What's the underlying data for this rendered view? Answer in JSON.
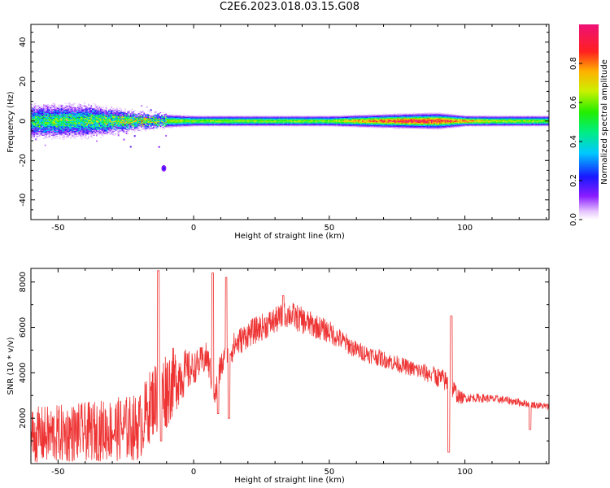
{
  "title": "C2E6.2023.018.03.15.G08",
  "colors": {
    "snr_line": "#ee3333",
    "axis": "#000000"
  },
  "chart_data": [
    {
      "type": "heatmap",
      "title": "C2E6.2023.018.03.15.G08",
      "xlabel": "Height of straight line (km)",
      "ylabel": "Frequency (Hz)",
      "xlim": [
        -60,
        131
      ],
      "ylim": [
        -50,
        49
      ],
      "x_ticks": [
        -50,
        0,
        50,
        100
      ],
      "y_ticks": [
        -40,
        -20,
        0,
        20,
        40
      ],
      "colorbar": {
        "label": "Normalized spectral amplitude",
        "range": [
          0.0,
          1.0
        ],
        "ticks": [
          0.0,
          0.2,
          0.4,
          0.6,
          0.8
        ],
        "colormap": "rainbow (white-purple-blue-cyan-green-yellow-orange-red-magenta)"
      },
      "band": {
        "center_frequency": 0,
        "half_width_x": [
          [
            -60,
            6
          ],
          [
            -40,
            6
          ],
          [
            -20,
            3
          ],
          [
            0,
            2
          ],
          [
            50,
            2
          ],
          [
            90,
            3
          ],
          [
            100,
            2
          ],
          [
            131,
            2
          ]
        ],
        "peak_amplitude_x": [
          [
            -60,
            0.55
          ],
          [
            -40,
            0.6
          ],
          [
            -20,
            0.7
          ],
          [
            0,
            0.6
          ],
          [
            50,
            0.6
          ],
          [
            60,
            0.75
          ],
          [
            80,
            0.95
          ],
          [
            90,
            0.9
          ],
          [
            100,
            0.8
          ],
          [
            110,
            0.65
          ],
          [
            131,
            0.6
          ]
        ],
        "isolated_blobs": [
          [
            -11,
            -24
          ]
        ]
      }
    },
    {
      "type": "line",
      "xlabel": "Height of straight line (km)",
      "ylabel": "SNR (10 * v/v)",
      "xlim": [
        -60,
        131
      ],
      "ylim": [
        0,
        8600
      ],
      "x_ticks": [
        -50,
        0,
        50,
        100
      ],
      "y_ticks": [
        2000,
        4000,
        6000,
        8000
      ],
      "grid": false,
      "series": [
        {
          "color": "#ee3333",
          "envelope_x": [
            -60,
            -50,
            -40,
            -30,
            -20,
            -15,
            -10,
            -5,
            0,
            5,
            8,
            10,
            15,
            20,
            25,
            30,
            35,
            40,
            50,
            60,
            70,
            80,
            88,
            92,
            95,
            98,
            105,
            115,
            125,
            131
          ],
          "envelope_y": [
            1200,
            1300,
            1400,
            1500,
            1600,
            2800,
            3300,
            3900,
            4200,
            4700,
            3000,
            4300,
            5200,
            5700,
            6000,
            6300,
            6600,
            6300,
            5800,
            5000,
            4600,
            4200,
            3900,
            3700,
            3400,
            2900,
            2900,
            2800,
            2600,
            2500
          ],
          "noise_amplitude_x": [
            [
              -60,
              1300
            ],
            [
              -40,
              1300
            ],
            [
              -20,
              1500
            ],
            [
              -10,
              1800
            ],
            [
              0,
              700
            ],
            [
              20,
              600
            ],
            [
              40,
              600
            ],
            [
              60,
              400
            ],
            [
              80,
              350
            ],
            [
              95,
              500
            ],
            [
              100,
              200
            ],
            [
              131,
              150
            ]
          ],
          "spikes": [
            [
              -13,
              8500
            ],
            [
              -12,
              1000
            ],
            [
              7,
              8400
            ],
            [
              9,
              2200
            ],
            [
              12,
              8200
            ],
            [
              13,
              2000
            ],
            [
              33,
              7400
            ],
            [
              88,
              4000
            ],
            [
              94,
              500
            ],
            [
              95,
              6500
            ],
            [
              124,
              1500
            ]
          ]
        }
      ]
    }
  ]
}
